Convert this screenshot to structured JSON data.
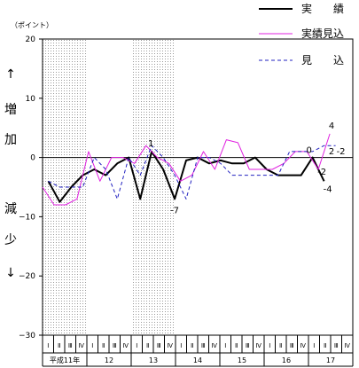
{
  "chart_data": {
    "type": "line",
    "unit_label": "（ポイント）",
    "side_label": [
      "↑",
      "増",
      "加",
      "",
      "減",
      "少",
      "↓"
    ],
    "ylim": [
      -30,
      20
    ],
    "yticks": [
      20,
      10,
      0,
      -10,
      -20,
      -30
    ],
    "ytick_labels": [
      "20",
      "10",
      "0",
      "−10",
      "−20",
      "−30"
    ],
    "quarter_labels": [
      "Ⅰ",
      "Ⅱ",
      "Ⅲ",
      "Ⅳ",
      "Ⅰ",
      "Ⅱ",
      "Ⅲ",
      "Ⅳ",
      "Ⅰ",
      "Ⅱ",
      "Ⅲ",
      "Ⅳ",
      "Ⅰ",
      "Ⅱ",
      "Ⅲ",
      "Ⅳ",
      "Ⅰ",
      "Ⅱ",
      "Ⅲ",
      "Ⅳ",
      "Ⅰ",
      "Ⅱ",
      "Ⅲ",
      "Ⅳ",
      "Ⅰ",
      "Ⅱ",
      "Ⅲ",
      "Ⅳ"
    ],
    "year_labels": [
      "平成11年",
      "12",
      "13",
      "14",
      "15",
      "16",
      "17"
    ],
    "shaded_years": [
      0,
      2
    ],
    "half_steps": 54,
    "series": [
      {
        "name": "実　　績",
        "color": "#000000",
        "dash": "none",
        "width": 2,
        "points": [
          [
            1,
            -4
          ],
          [
            3,
            -7.5
          ],
          [
            5,
            -5
          ],
          [
            7,
            -3
          ],
          [
            9,
            -2
          ],
          [
            11,
            -3
          ],
          [
            13,
            -1
          ],
          [
            15,
            0
          ],
          [
            17,
            -7
          ],
          [
            19,
            1
          ],
          [
            21,
            -2
          ],
          [
            23,
            -7
          ],
          [
            25,
            -0.5
          ],
          [
            27,
            0
          ],
          [
            29,
            -1
          ],
          [
            31,
            -0.5
          ],
          [
            33,
            -1
          ],
          [
            35,
            -1
          ],
          [
            37,
            0
          ],
          [
            39,
            -2
          ],
          [
            41,
            -3
          ],
          [
            43,
            -3
          ],
          [
            45,
            -3
          ],
          [
            47,
            0
          ],
          [
            49,
            -4
          ]
        ]
      },
      {
        "name": "実績見込",
        "color": "#e020e0",
        "dash": "none",
        "width": 1,
        "points": [
          [
            0,
            -5
          ],
          [
            2,
            -8
          ],
          [
            4,
            -8
          ],
          [
            6,
            -7
          ],
          [
            8,
            1
          ],
          [
            10,
            -4
          ],
          [
            12,
            0
          ],
          [
            14,
            0
          ],
          [
            16,
            -1
          ],
          [
            18,
            2
          ],
          [
            20,
            0
          ],
          [
            22,
            -1
          ],
          [
            24,
            -4
          ],
          [
            26,
            -3
          ],
          [
            28,
            1
          ],
          [
            30,
            -2
          ],
          [
            32,
            3
          ],
          [
            34,
            2.5
          ],
          [
            36,
            -2
          ],
          [
            38,
            -2
          ],
          [
            40,
            -2
          ],
          [
            42,
            -1
          ],
          [
            44,
            1
          ],
          [
            46,
            1
          ],
          [
            48,
            -2
          ],
          [
            50,
            4
          ]
        ]
      },
      {
        "name": "見　　込",
        "color": "#2020c0",
        "dash": "4,3",
        "width": 1,
        "points": [
          [
            1,
            -4
          ],
          [
            3,
            -5
          ],
          [
            5,
            -5
          ],
          [
            7,
            -5
          ],
          [
            9,
            0
          ],
          [
            11,
            -2
          ],
          [
            13,
            -7
          ],
          [
            15,
            0
          ],
          [
            17,
            -3
          ],
          [
            19,
            2
          ],
          [
            21,
            0
          ],
          [
            23,
            -3
          ],
          [
            25,
            -7
          ],
          [
            27,
            0
          ],
          [
            29,
            0
          ],
          [
            31,
            -1
          ],
          [
            33,
            -3
          ],
          [
            35,
            -3
          ],
          [
            37,
            -3
          ],
          [
            39,
            -3
          ],
          [
            41,
            -3
          ],
          [
            43,
            1
          ],
          [
            45,
            1
          ],
          [
            47,
            1
          ],
          [
            49,
            2
          ],
          [
            51,
            2
          ]
        ]
      }
    ],
    "annotations": [
      {
        "text": "1",
        "x": 19,
        "y": 1,
        "color": "#000000"
      },
      {
        "text": "-7",
        "x": 23,
        "y": -7,
        "color": "#000000"
      },
      {
        "text": "0",
        "x": 47,
        "y": 0,
        "color": "#000000"
      },
      {
        "text": "4",
        "x": 50,
        "y": 4,
        "color": "#000000"
      },
      {
        "text": "2",
        "x": 50,
        "y": 2,
        "color": "#000000"
      },
      {
        "text": "-2",
        "x": 51,
        "y": 2,
        "color": "#000000"
      },
      {
        "text": "-2",
        "x": 48,
        "y": -2,
        "color": "#000000"
      },
      {
        "text": "-4",
        "x": 49,
        "y": -4,
        "color": "#000000"
      }
    ]
  }
}
